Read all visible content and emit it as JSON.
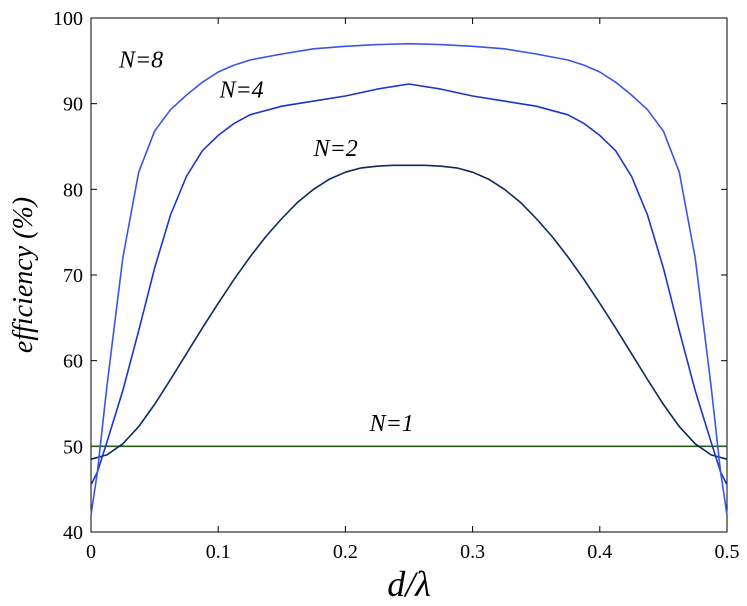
{
  "chart_data": {
    "type": "line",
    "xlabel": "d/λ",
    "ylabel": "efficiency (%)",
    "xlim": [
      0,
      0.5
    ],
    "ylim": [
      40,
      100
    ],
    "xticks": [
      "0",
      "0.1",
      "0.2",
      "0.3",
      "0.4",
      "0.5"
    ],
    "yticks": [
      "40",
      "50",
      "60",
      "70",
      "80",
      "90",
      "100"
    ],
    "grid": false,
    "legend": "none",
    "series": [
      {
        "name": "N=1",
        "color": "#2a5a16",
        "x": [
          0,
          0.5
        ],
        "y": [
          50,
          50
        ]
      },
      {
        "name": "N=2",
        "color": "#0b2a63",
        "x": [
          0,
          0.0125,
          0.025,
          0.0375,
          0.05,
          0.0625,
          0.075,
          0.0875,
          0.1,
          0.1125,
          0.125,
          0.1375,
          0.15,
          0.1625,
          0.175,
          0.1875,
          0.2,
          0.2125,
          0.225,
          0.2375,
          0.25,
          0.2625,
          0.275,
          0.2875,
          0.3,
          0.3125,
          0.325,
          0.3375,
          0.35,
          0.3625,
          0.375,
          0.3875,
          0.4,
          0.4125,
          0.425,
          0.4375,
          0.45,
          0.4625,
          0.475,
          0.4875,
          0.5
        ],
        "y": [
          48.5,
          49.0,
          50.3,
          52.3,
          54.9,
          57.8,
          60.8,
          63.8,
          66.7,
          69.5,
          72.1,
          74.5,
          76.6,
          78.5,
          80.0,
          81.2,
          82.0,
          82.5,
          82.7,
          82.8,
          82.8,
          82.8,
          82.7,
          82.5,
          82.0,
          81.2,
          80.0,
          78.5,
          76.6,
          74.5,
          72.1,
          69.5,
          66.7,
          63.8,
          60.8,
          57.8,
          54.9,
          52.3,
          50.3,
          49.0,
          48.5
        ]
      },
      {
        "name": "N=4",
        "color": "#1a35cf",
        "x": [
          0,
          0.005,
          0.0125,
          0.025,
          0.0375,
          0.05,
          0.0625,
          0.075,
          0.0875,
          0.1,
          0.1125,
          0.125,
          0.15,
          0.175,
          0.2,
          0.225,
          0.25,
          0.275,
          0.3,
          0.325,
          0.35,
          0.375,
          0.3875,
          0.4,
          0.4125,
          0.425,
          0.4375,
          0.45,
          0.4625,
          0.475,
          0.4875,
          0.495,
          0.5
        ],
        "y": [
          45.5,
          47.0,
          50.5,
          56.5,
          63.5,
          70.8,
          77.0,
          81.5,
          84.5,
          86.3,
          87.7,
          88.7,
          89.7,
          90.3,
          90.9,
          91.7,
          92.3,
          91.7,
          90.9,
          90.3,
          89.7,
          88.7,
          87.7,
          86.3,
          84.5,
          81.5,
          77.0,
          70.8,
          63.5,
          56.5,
          50.5,
          47.0,
          45.5
        ]
      },
      {
        "name": "N=8",
        "color": "#3b55e8",
        "x": [
          0,
          0.005,
          0.0125,
          0.025,
          0.0375,
          0.05,
          0.0625,
          0.075,
          0.0875,
          0.1,
          0.1125,
          0.125,
          0.15,
          0.175,
          0.2,
          0.225,
          0.25,
          0.275,
          0.3,
          0.325,
          0.35,
          0.375,
          0.3875,
          0.4,
          0.4125,
          0.425,
          0.4375,
          0.45,
          0.4625,
          0.475,
          0.4875,
          0.495,
          0.5
        ],
        "y": [
          42.0,
          47.0,
          57.0,
          72.0,
          82.0,
          86.8,
          89.3,
          91.0,
          92.5,
          93.7,
          94.5,
          95.1,
          95.8,
          96.4,
          96.7,
          96.9,
          97.0,
          96.9,
          96.7,
          96.4,
          95.8,
          95.1,
          94.5,
          93.7,
          92.5,
          91.0,
          89.3,
          86.8,
          82.0,
          72.0,
          57.0,
          47.0,
          42.0
        ]
      }
    ],
    "annotations": [
      {
        "text": "N=8",
        "x": 0.022,
        "y": 94.2
      },
      {
        "text": "N=4",
        "x": 0.101,
        "y": 90.7
      },
      {
        "text": "N=2",
        "x": 0.175,
        "y": 83.9
      },
      {
        "text": "N=1",
        "x": 0.219,
        "y": 51.8
      }
    ]
  }
}
